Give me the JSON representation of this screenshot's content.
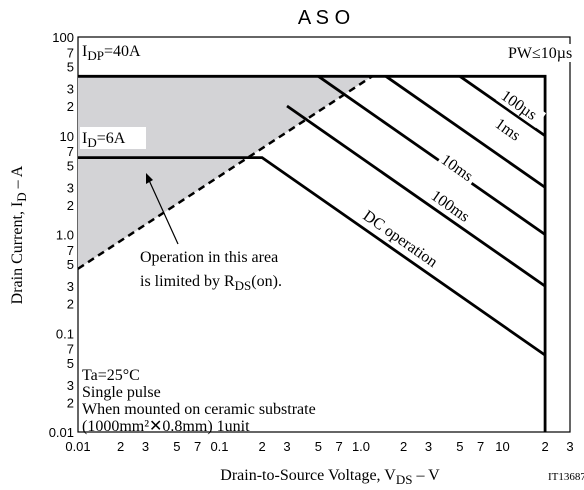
{
  "chart_data": {
    "type": "line",
    "title": "A S O",
    "x_label": {
      "main": "Drain-to-Source Voltage, V",
      "sub": "DS",
      "rest": " – V"
    },
    "y_label": {
      "main": "Drain Current, I",
      "sub": "D",
      "rest": " – A"
    },
    "code": "IT13687",
    "log_x": true,
    "log_y": true,
    "grid": true,
    "xlim": [
      0.01,
      30
    ],
    "ylim": [
      0.01,
      100
    ],
    "xticks": [
      0.01,
      2,
      3,
      5,
      7,
      0.1,
      2,
      3,
      5,
      7,
      {
        "value": 1,
        "label": "1.0"
      },
      2,
      3,
      5,
      7,
      10,
      2,
      3
    ],
    "xtick_values": [
      0.01,
      0.02,
      0.03,
      0.05,
      0.07,
      0.1,
      0.2,
      0.3,
      0.5,
      0.7,
      1,
      2,
      3,
      5,
      7,
      10,
      20,
      30
    ],
    "yticks": [
      0.01,
      2,
      3,
      5,
      7,
      0.1,
      2,
      3,
      5,
      7,
      {
        "value": 1,
        "label": "1.0"
      },
      2,
      3,
      5,
      7,
      10,
      2,
      3,
      5,
      7,
      100
    ],
    "ytick_values": [
      0.01,
      0.02,
      0.03,
      0.05,
      0.07,
      0.1,
      0.2,
      0.3,
      0.5,
      0.7,
      1,
      2,
      3,
      5,
      7,
      10,
      20,
      30,
      50,
      70,
      100
    ],
    "series": [
      {
        "name": "PW≤10µs",
        "color": "#000000",
        "x": [
          0.01,
          20,
          20
        ],
        "values": [
          40,
          40,
          0.01
        ]
      },
      {
        "name": "100µs",
        "color": "#000000",
        "x": [
          5,
          20
        ],
        "values": [
          40,
          10
        ]
      },
      {
        "name": "1ms",
        "color": "#000000",
        "x": [
          1.5,
          20
        ],
        "values": [
          40,
          3
        ]
      },
      {
        "name": "10ms",
        "color": "#000000",
        "x": [
          0.5,
          20
        ],
        "values": [
          40,
          1
        ]
      },
      {
        "name": "100ms",
        "color": "#000000",
        "x": [
          0.3,
          20
        ],
        "values": [
          20,
          0.3
        ]
      },
      {
        "name": "DC operation",
        "color": "#000000",
        "x": [
          0.01,
          0.2,
          20
        ],
        "values": [
          6,
          6,
          0.06
        ]
      }
    ],
    "rds_line": {
      "x": [
        0.01,
        1.2
      ],
      "values": [
        0.45,
        40
      ],
      "color": "#000000",
      "area_color": "#d3d3d6"
    },
    "idp_label": {
      "main": "I",
      "sub": "DP",
      "rest": "=40A"
    },
    "id_label": {
      "main": "I",
      "sub": "D",
      "rest": "=6A"
    },
    "note": {
      "line1": "Operation in this area",
      "main": "is limited by R",
      "sub": "DS",
      "rest": "(on)."
    },
    "conditions": [
      "Ta=25°C",
      "Single pulse",
      "When mounted on ceramic substrate",
      "(1000mm²✕0.8mm) 1unit"
    ]
  }
}
